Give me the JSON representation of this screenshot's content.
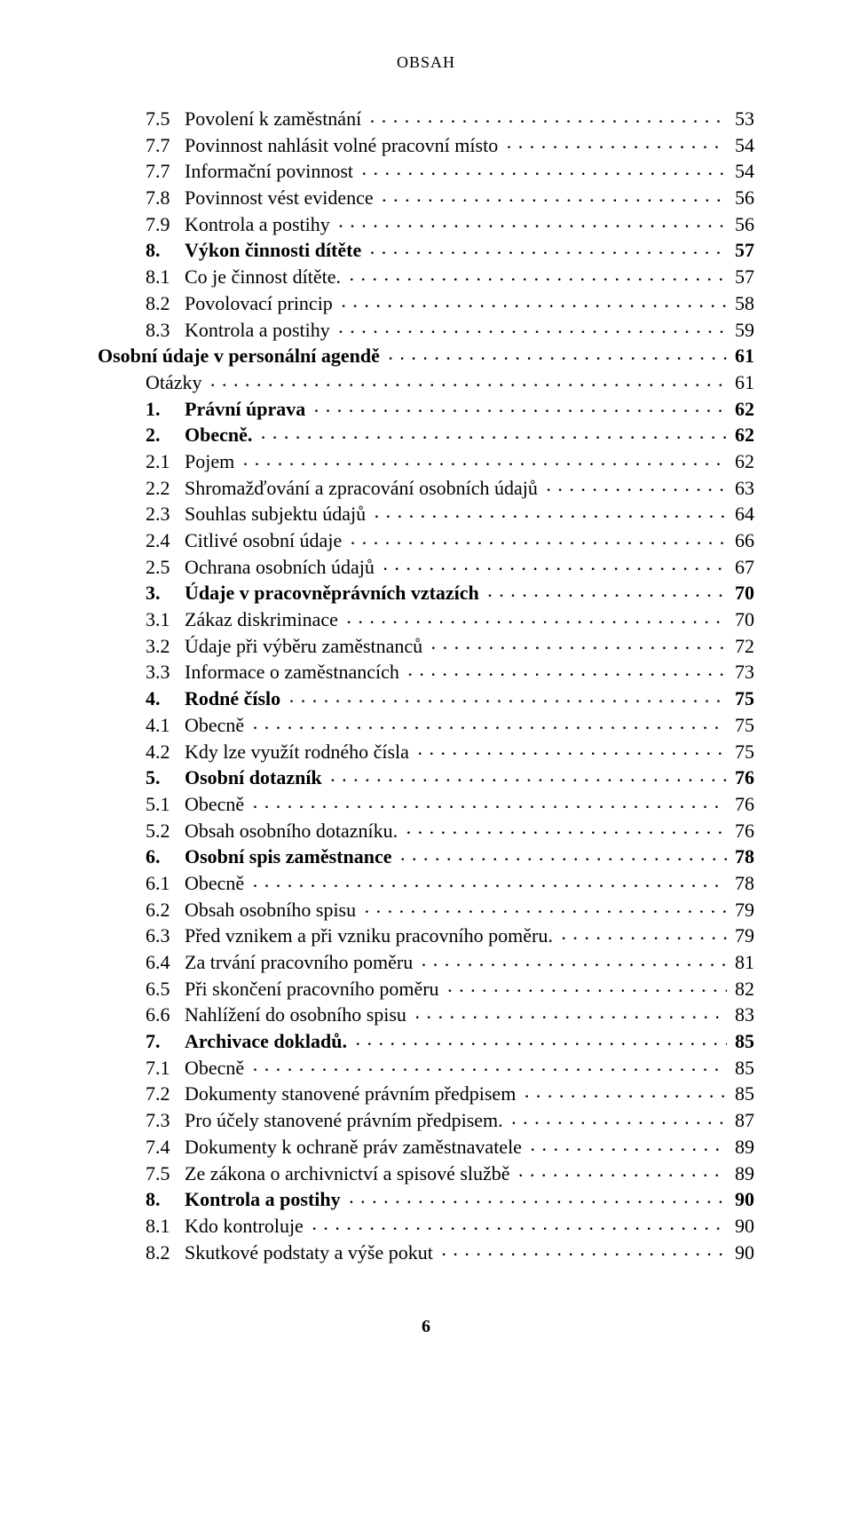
{
  "header": "OBSAH",
  "footer_page": "6",
  "font_size_body": 22,
  "entries": [
    {
      "indent": 1,
      "label": "7.5",
      "labelPad": 4,
      "title": "Povolení k zaměstnání",
      "page": "53",
      "bold": false
    },
    {
      "indent": 1,
      "label": "7.7",
      "labelPad": 4,
      "title": "Povinnost nahlásit volné pracovní místo",
      "page": "54",
      "bold": false
    },
    {
      "indent": 1,
      "label": "7.7",
      "labelPad": 4,
      "title": "Informační povinnost",
      "page": "54",
      "bold": false
    },
    {
      "indent": 1,
      "label": "7.8",
      "labelPad": 4,
      "title": "Povinnost vést evidence",
      "page": "56",
      "bold": false
    },
    {
      "indent": 1,
      "label": "7.9",
      "labelPad": 4,
      "title": "Kontrola a postihy",
      "page": "56",
      "bold": false
    },
    {
      "indent": 1,
      "label": "8.",
      "labelPad": 5,
      "title": "Výkon činnosti dítěte",
      "page": "57",
      "bold": true
    },
    {
      "indent": 1,
      "label": "8.1",
      "labelPad": 4,
      "title": "Co je činnost dítěte.",
      "page": "57",
      "bold": false
    },
    {
      "indent": 1,
      "label": "8.2",
      "labelPad": 4,
      "title": "Povolovací princip",
      "page": "58",
      "bold": false
    },
    {
      "indent": 1,
      "label": "8.3",
      "labelPad": 4,
      "title": "Kontrola a postihy",
      "page": "59",
      "bold": false
    },
    {
      "indent": 0,
      "label": "",
      "labelPad": 0,
      "title": "Osobní údaje v personální agendě",
      "page": "61",
      "bold": true
    },
    {
      "indent": 1,
      "label": "",
      "labelPad": 0,
      "title": "Otázky",
      "page": "61",
      "bold": false
    },
    {
      "indent": 1,
      "label": "1.",
      "labelPad": 5,
      "title": "Právní úprava",
      "page": "62",
      "bold": true
    },
    {
      "indent": 1,
      "label": "2.",
      "labelPad": 5,
      "title": "Obecně.",
      "page": "62",
      "bold": true
    },
    {
      "indent": 1,
      "label": "2.1",
      "labelPad": 4,
      "title": "Pojem",
      "page": "62",
      "bold": false
    },
    {
      "indent": 1,
      "label": "2.2",
      "labelPad": 4,
      "title": "Shromažďování a zpracování osobních údajů",
      "page": "63",
      "bold": false
    },
    {
      "indent": 1,
      "label": "2.3",
      "labelPad": 4,
      "title": "Souhlas subjektu údajů",
      "page": "64",
      "bold": false
    },
    {
      "indent": 1,
      "label": "2.4",
      "labelPad": 4,
      "title": "Citlivé osobní údaje",
      "page": "66",
      "bold": false
    },
    {
      "indent": 1,
      "label": "2.5",
      "labelPad": 4,
      "title": "Ochrana osobních údajů",
      "page": "67",
      "bold": false
    },
    {
      "indent": 1,
      "label": "3.",
      "labelPad": 5,
      "title": "Údaje v pracovněprávních vztazích",
      "page": "70",
      "bold": true
    },
    {
      "indent": 1,
      "label": "3.1",
      "labelPad": 4,
      "title": "Zákaz diskriminace",
      "page": "70",
      "bold": false
    },
    {
      "indent": 1,
      "label": "3.2",
      "labelPad": 4,
      "title": "Údaje při výběru zaměstnanců",
      "page": "72",
      "bold": false
    },
    {
      "indent": 1,
      "label": "3.3",
      "labelPad": 4,
      "title": "Informace o zaměstnancích",
      "page": "73",
      "bold": false
    },
    {
      "indent": 1,
      "label": "4.",
      "labelPad": 5,
      "title": "Rodné číslo",
      "page": "75",
      "bold": true
    },
    {
      "indent": 1,
      "label": "4.1",
      "labelPad": 4,
      "title": "Obecně",
      "page": "75",
      "bold": false
    },
    {
      "indent": 1,
      "label": "4.2",
      "labelPad": 4,
      "title": "Kdy lze využít rodného čísla",
      "page": "75",
      "bold": false
    },
    {
      "indent": 1,
      "label": "5.",
      "labelPad": 5,
      "title": "Osobní dotazník",
      "page": "76",
      "bold": true
    },
    {
      "indent": 1,
      "label": "5.1",
      "labelPad": 4,
      "title": "Obecně",
      "page": "76",
      "bold": false
    },
    {
      "indent": 1,
      "label": "5.2",
      "labelPad": 4,
      "title": "Obsah osobního dotazníku.",
      "page": "76",
      "bold": false
    },
    {
      "indent": 1,
      "label": "6.",
      "labelPad": 5,
      "title": "Osobní spis zaměstnance",
      "page": "78",
      "bold": true
    },
    {
      "indent": 1,
      "label": "6.1",
      "labelPad": 4,
      "title": "Obecně",
      "page": "78",
      "bold": false
    },
    {
      "indent": 1,
      "label": "6.2",
      "labelPad": 4,
      "title": "Obsah osobního spisu",
      "page": "79",
      "bold": false
    },
    {
      "indent": 1,
      "label": "6.3",
      "labelPad": 4,
      "title": "Před vznikem a při vzniku pracovního poměru.",
      "page": "79",
      "bold": false
    },
    {
      "indent": 1,
      "label": "6.4",
      "labelPad": 4,
      "title": "Za trvání pracovního poměru",
      "page": "81",
      "bold": false
    },
    {
      "indent": 1,
      "label": "6.5",
      "labelPad": 4,
      "title": "Při skončení pracovního poměru",
      "page": "82",
      "bold": false
    },
    {
      "indent": 1,
      "label": "6.6",
      "labelPad": 4,
      "title": "Nahlížení do osobního spisu",
      "page": "83",
      "bold": false
    },
    {
      "indent": 1,
      "label": "7.",
      "labelPad": 5,
      "title": "Archivace dokladů.",
      "page": "85",
      "bold": true
    },
    {
      "indent": 1,
      "label": "7.1",
      "labelPad": 4,
      "title": "Obecně",
      "page": "85",
      "bold": false
    },
    {
      "indent": 1,
      "label": "7.2",
      "labelPad": 4,
      "title": "Dokumenty stanovené právním předpisem",
      "page": "85",
      "bold": false
    },
    {
      "indent": 1,
      "label": "7.3",
      "labelPad": 4,
      "title": "Pro účely stanovené právním předpisem.",
      "page": "87",
      "bold": false
    },
    {
      "indent": 1,
      "label": "7.4",
      "labelPad": 4,
      "title": "Dokumenty k ochraně práv zaměstnavatele",
      "page": "89",
      "bold": false
    },
    {
      "indent": 1,
      "label": "7.5",
      "labelPad": 4,
      "title": "Ze zákona o archivnictví a spisové službě",
      "page": "89",
      "bold": false
    },
    {
      "indent": 1,
      "label": "8.",
      "labelPad": 5,
      "title": "Kontrola a postihy",
      "page": "90",
      "bold": true
    },
    {
      "indent": 1,
      "label": "8.1",
      "labelPad": 4,
      "title": "Kdo kontroluje",
      "page": "90",
      "bold": false
    },
    {
      "indent": 1,
      "label": "8.2",
      "labelPad": 4,
      "title": "Skutkové podstaty a výše pokut",
      "page": "90",
      "bold": false
    }
  ]
}
